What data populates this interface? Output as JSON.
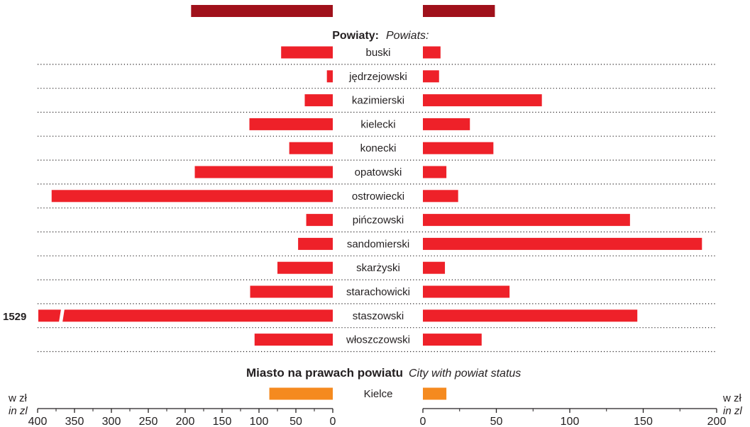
{
  "chart_data": {
    "type": "bar",
    "layout": "two-sided horizontal bar chart",
    "left_axis": {
      "range": [
        0,
        400
      ],
      "reversed": true,
      "ticks": [
        "400",
        "350",
        "300",
        "250",
        "200",
        "150",
        "100",
        "50",
        "0"
      ],
      "unit_pl": "w zł",
      "unit_en": "in zl"
    },
    "right_axis": {
      "range": [
        0,
        200
      ],
      "ticks": [
        "0",
        "50",
        "100",
        "150",
        "200"
      ],
      "unit_pl": "w zł",
      "unit_en": "in zl"
    },
    "top_bars": {
      "left": 192,
      "right": 49
    },
    "section_powiaty": {
      "title_pl": "Powiaty:",
      "title_en": "Powiats:",
      "categories": [
        "buski",
        "jędrzejowski",
        "kazimierski",
        "kielecki",
        "konecki",
        "opatowski",
        "ostrowiecki",
        "pińczowski",
        "sandomierski",
        "skarżyski",
        "starachowicki",
        "staszowski",
        "włoszczowski"
      ],
      "left_values": [
        70,
        8,
        38,
        113,
        59,
        187,
        381,
        36,
        47,
        75,
        112,
        1529,
        106
      ],
      "right_values": [
        12,
        11,
        81,
        32,
        48,
        16,
        24,
        141,
        190,
        15,
        59,
        146,
        40
      ],
      "broken_bar_label": "1529"
    },
    "section_city": {
      "title_pl": "Miasto na prawach powiatu",
      "title_en": "City with powiat status",
      "categories": [
        "Kielce"
      ],
      "left_values": [
        86
      ],
      "right_values": [
        16
      ]
    },
    "colors": {
      "top": "#a0111b",
      "powiat": "#ee2129",
      "city": "#f58a1f",
      "text": "#231f20"
    },
    "grid": "dotted separators between rows"
  }
}
